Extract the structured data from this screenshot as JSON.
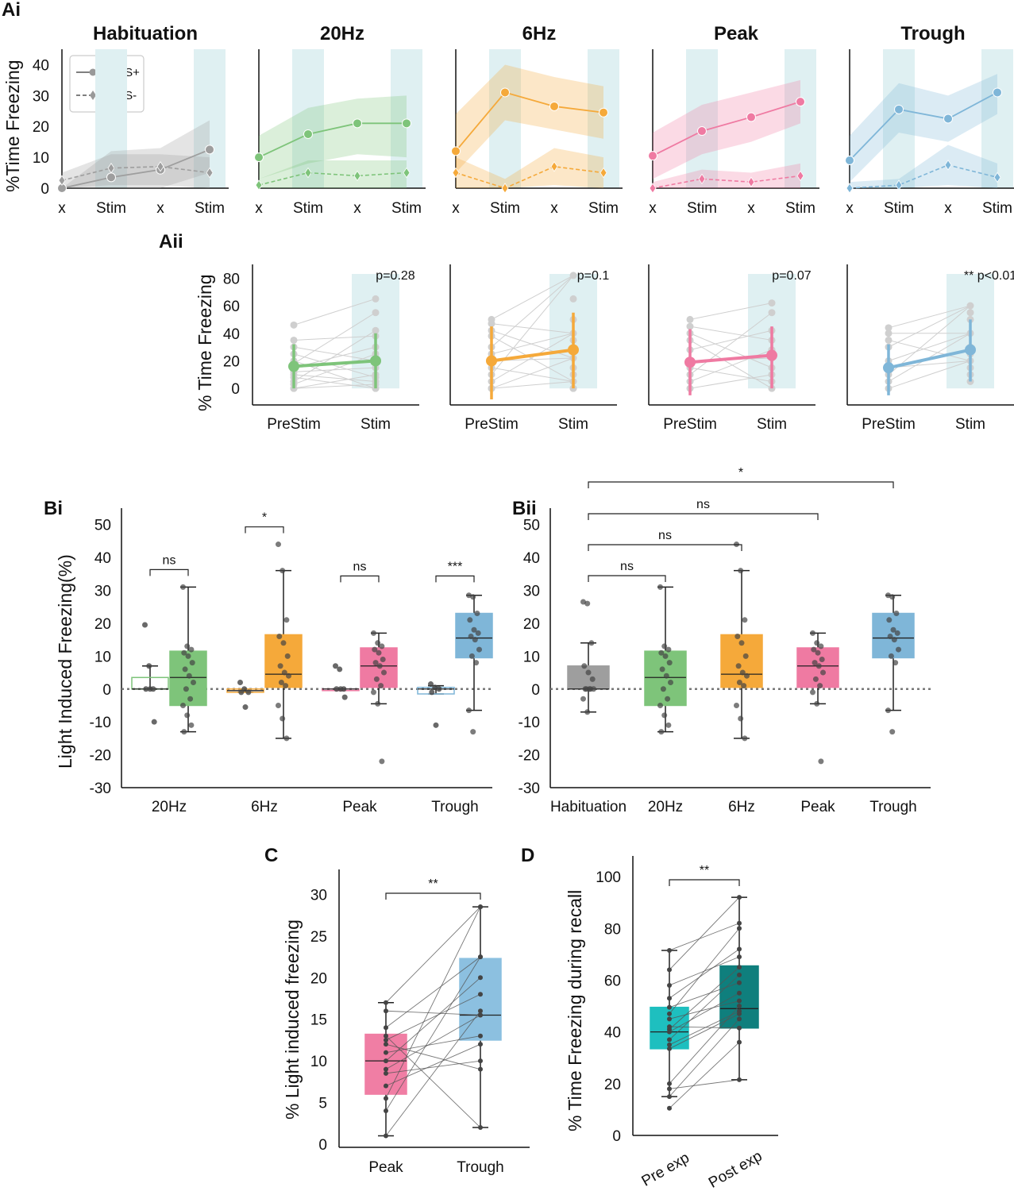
{
  "panel_labels": {
    "ai": "Ai",
    "aii": "Aii",
    "bi": "Bi",
    "bii": "Bii",
    "c": "C",
    "d": "D"
  },
  "colors": {
    "habituation": "#9e9e9e",
    "hz20": "#7ec47a",
    "hz6": "#f5a93a",
    "peak": "#ef7aa2",
    "trough": "#7fb6d8",
    "stim_band": "#dff0f2",
    "c_peak": "#f07ea4",
    "c_trough": "#8cc0e0",
    "d_pre": "#1ebfbf",
    "d_post": "#0f7f7d"
  },
  "chart_data": [
    {
      "id": "Ai",
      "type": "line",
      "ylabel": "%Time Freezing",
      "ylim": [
        0,
        45
      ],
      "yticks": [
        "0",
        "10",
        "20",
        "30",
        "40"
      ],
      "x_ticks": [
        "x",
        "Stim",
        "x",
        "Stim"
      ],
      "legend": [
        "FS+",
        "FS-"
      ],
      "panels": [
        {
          "title": "Habituation",
          "color": "#9e9e9e",
          "fs_plus": [
            0,
            3.5,
            6,
            12.5
          ],
          "fs_minus": [
            2.5,
            6.5,
            7,
            5
          ],
          "band_plus": [
            [
              0,
              0
            ],
            [
              0,
              12
            ],
            [
              0,
              13
            ],
            [
              5,
              22
            ]
          ],
          "band_minus": [
            [
              0,
              5
            ],
            [
              1,
              11
            ],
            [
              1,
              11
            ],
            [
              0,
              10
            ]
          ]
        },
        {
          "title": "20Hz",
          "color": "#7ec47a",
          "fs_plus": [
            10,
            17.5,
            21,
            21
          ],
          "fs_minus": [
            1,
            5,
            4,
            5
          ],
          "band_plus": [
            [
              3,
              17
            ],
            [
              8,
              26
            ],
            [
              11,
              29
            ],
            [
              10,
              30
            ]
          ],
          "band_minus": [
            [
              0,
              3
            ],
            [
              0,
              9
            ],
            [
              0,
              9
            ],
            [
              0,
              9
            ]
          ]
        },
        {
          "title": "6Hz",
          "color": "#f5a93a",
          "fs_plus": [
            12,
            31,
            26.5,
            24.5
          ],
          "fs_minus": [
            5,
            0,
            7,
            5
          ],
          "band_plus": [
            [
              5,
              24
            ],
            [
              22,
              40
            ],
            [
              19,
              36
            ],
            [
              16,
              33
            ]
          ],
          "band_minus": [
            [
              0,
              10
            ],
            [
              0,
              3
            ],
            [
              1,
              13
            ],
            [
              0,
              10
            ]
          ]
        },
        {
          "title": "Peak",
          "color": "#ef7aa2",
          "fs_plus": [
            10.5,
            18.5,
            23,
            28
          ],
          "fs_minus": [
            0,
            3,
            2,
            4
          ],
          "band_plus": [
            [
              3,
              18
            ],
            [
              11,
              27
            ],
            [
              15,
              31
            ],
            [
              21,
              35
            ]
          ],
          "band_minus": [
            [
              0,
              2
            ],
            [
              0,
              6
            ],
            [
              0,
              5
            ],
            [
              0,
              8
            ]
          ]
        },
        {
          "title": "Trough",
          "color": "#7fb6d8",
          "fs_plus": [
            9,
            25.5,
            22.5,
            31
          ],
          "fs_minus": [
            0,
            1,
            7.5,
            3.5
          ],
          "band_plus": [
            [
              2,
              17
            ],
            [
              18,
              34
            ],
            [
              15,
              30
            ],
            [
              24,
              37
            ]
          ],
          "band_minus": [
            [
              0,
              2
            ],
            [
              0,
              3
            ],
            [
              1,
              14
            ],
            [
              0,
              8
            ]
          ]
        }
      ]
    },
    {
      "id": "Aii",
      "type": "line",
      "ylabel": "% Time Freezing",
      "ylim": [
        -12,
        90
      ],
      "yticks": [
        "0",
        "20",
        "40",
        "60",
        "80"
      ],
      "x_ticks": [
        "PreStim",
        "Stim"
      ],
      "panels": [
        {
          "color": "#7ec47a",
          "pval": "p=0.28",
          "means": [
            16,
            20
          ],
          "err": [
            [
              0,
              32
            ],
            [
              0,
              40
            ]
          ],
          "pre": [
            46,
            35,
            30,
            25,
            20,
            18,
            15,
            12,
            10,
            8,
            5,
            3,
            0,
            0
          ],
          "post": [
            65,
            55,
            42,
            38,
            30,
            25,
            20,
            15,
            10,
            8,
            5,
            3,
            0,
            0
          ]
        },
        {
          "color": "#f5a93a",
          "pval": "p=0.1",
          "means": [
            20,
            28
          ],
          "err": [
            [
              -8,
              45
            ],
            [
              0,
              55
            ]
          ],
          "pre": [
            50,
            47,
            42,
            38,
            30,
            25,
            20,
            15,
            10,
            5,
            0,
            0
          ],
          "post": [
            82,
            65,
            50,
            40,
            35,
            28,
            22,
            15,
            10,
            5,
            0,
            0
          ]
        },
        {
          "color": "#ef7aa2",
          "pval": "p=0.07",
          "means": [
            19,
            24
          ],
          "err": [
            [
              -5,
              43
            ],
            [
              0,
              45
            ]
          ],
          "pre": [
            50,
            45,
            40,
            35,
            28,
            20,
            15,
            10,
            5,
            0
          ],
          "post": [
            62,
            55,
            42,
            35,
            28,
            22,
            15,
            10,
            5,
            0
          ]
        },
        {
          "color": "#7fb6d8",
          "pval": "** p<0.01",
          "means": [
            15,
            28
          ],
          "err": [
            [
              -5,
              32
            ],
            [
              5,
              50
            ]
          ],
          "pre": [
            44,
            40,
            35,
            30,
            20,
            15,
            10,
            5,
            0
          ],
          "post": [
            60,
            55,
            50,
            40,
            30,
            25,
            20,
            15,
            10,
            5
          ]
        }
      ]
    },
    {
      "id": "Bi",
      "type": "box",
      "ylabel": "Light Induced Freezing(%)",
      "ylim": [
        -30,
        55
      ],
      "yticks": [
        "-30",
        "-20",
        "-10",
        "0",
        "10",
        "20",
        "30",
        "40",
        "50"
      ],
      "categories": [
        "20Hz",
        "6Hz",
        "Peak",
        "Trough"
      ],
      "colors": [
        "#7ec47a",
        "#f5a93a",
        "#ef7aa2",
        "#7fb6d8"
      ],
      "sig": [
        "ns",
        "*",
        "ns",
        "***"
      ],
      "pre": [
        {
          "q1": 0,
          "med": 0,
          "q3": 3.5,
          "lo": 0,
          "hi": 7,
          "pts": [
            19.5,
            7,
            0,
            0,
            0,
            -10
          ]
        },
        {
          "q1": -1,
          "med": -0.5,
          "q3": 0,
          "lo": -1,
          "hi": 0,
          "pts": [
            2,
            0,
            -1,
            -1,
            -5.5
          ]
        },
        {
          "q1": 0,
          "med": 0,
          "q3": 0,
          "lo": 0,
          "hi": 0,
          "pts": [
            7,
            6,
            0,
            0,
            0,
            -2.5
          ]
        },
        {
          "q1": -1.5,
          "med": 0,
          "q3": 0.5,
          "lo": -1.5,
          "hi": 1,
          "pts": [
            1.5,
            0.5,
            0,
            -1,
            -11
          ]
        }
      ],
      "stim": [
        {
          "q1": -5,
          "med": 3.5,
          "q3": 11.5,
          "lo": -13,
          "hi": 31,
          "pts": [
            31,
            13,
            12,
            11,
            10,
            8,
            6,
            4,
            2,
            0,
            -3,
            -5,
            -8,
            -11,
            -13
          ]
        },
        {
          "q1": 0.5,
          "med": 4.5,
          "q3": 16.5,
          "lo": -15,
          "hi": 36,
          "pts": [
            44,
            36,
            21,
            16,
            14,
            10,
            7,
            5,
            4,
            2,
            1,
            -5,
            -9,
            -15
          ]
        },
        {
          "q1": 0.5,
          "med": 7,
          "q3": 12.5,
          "lo": -4.5,
          "hi": 17,
          "pts": [
            17,
            14,
            13,
            12,
            11,
            9,
            8,
            7,
            5,
            3,
            1,
            -1,
            -4.5,
            -22
          ]
        },
        {
          "q1": 9.5,
          "med": 15.5,
          "q3": 23,
          "lo": -6.5,
          "hi": 28.5,
          "pts": [
            28.5,
            28,
            23,
            21,
            18,
            17,
            16,
            15,
            12,
            10,
            8,
            -6.5,
            -13
          ]
        }
      ]
    },
    {
      "id": "Bii",
      "type": "box",
      "ylim": [
        -30,
        55
      ],
      "yticks": [
        "-30",
        "-20",
        "-10",
        "0",
        "10",
        "20",
        "30",
        "40",
        "50"
      ],
      "categories": [
        "Habituation",
        "20Hz",
        "6Hz",
        "Peak",
        "Trough"
      ],
      "colors": [
        "#9e9e9e",
        "#7ec47a",
        "#f5a93a",
        "#ef7aa2",
        "#7fb6d8"
      ],
      "comparisons": [
        {
          "to": "20Hz",
          "label": "ns"
        },
        {
          "to": "6Hz",
          "label": "ns"
        },
        {
          "to": "Peak",
          "label": "ns"
        },
        {
          "to": "Trough",
          "label": "*"
        }
      ],
      "boxes": [
        {
          "q1": 0,
          "med": 0,
          "q3": 7,
          "lo": -7,
          "hi": 14,
          "pts": [
            26.5,
            26,
            14,
            7,
            5,
            3,
            0,
            0,
            0,
            0,
            0,
            -3,
            -7
          ]
        },
        {
          "q1": -5,
          "med": 3.5,
          "q3": 11.5,
          "lo": -13,
          "hi": 31,
          "pts": [
            31,
            13,
            12,
            11,
            10,
            8,
            6,
            4,
            2,
            0,
            -3,
            -5,
            -8,
            -11,
            -13
          ]
        },
        {
          "q1": 0.5,
          "med": 4.5,
          "q3": 16.5,
          "lo": -15,
          "hi": 36,
          "pts": [
            44,
            36,
            21,
            16,
            14,
            10,
            7,
            5,
            4,
            2,
            1,
            -5,
            -9,
            -15
          ]
        },
        {
          "q1": 0.5,
          "med": 7,
          "q3": 12.5,
          "lo": -4.5,
          "hi": 17,
          "pts": [
            17,
            14,
            13,
            12,
            11,
            9,
            8,
            7,
            5,
            3,
            1,
            -1,
            -4.5,
            -22
          ]
        },
        {
          "q1": 9.5,
          "med": 15.5,
          "q3": 23,
          "lo": -6.5,
          "hi": 28.5,
          "pts": [
            28.5,
            28,
            23,
            21,
            18,
            17,
            16,
            15,
            12,
            10,
            8,
            -6.5,
            -13
          ]
        }
      ]
    },
    {
      "id": "C",
      "type": "box",
      "ylabel": "% Light induced freezing",
      "ylim": [
        0,
        33
      ],
      "yticks": [
        "0",
        "5",
        "10",
        "15",
        "20",
        "25",
        "30"
      ],
      "categories": [
        "Peak",
        "Trough"
      ],
      "sig": "**",
      "boxes": [
        {
          "q1": 6,
          "med": 10,
          "q3": 13.2,
          "lo": 1,
          "hi": 17
        },
        {
          "q1": 12.5,
          "med": 15.5,
          "q3": 22.3,
          "lo": 2,
          "hi": 28.5
        }
      ],
      "pairs": [
        [
          1,
          16
        ],
        [
          4,
          22.5
        ],
        [
          5.5,
          28.5
        ],
        [
          7,
          12
        ],
        [
          8.5,
          10
        ],
        [
          9,
          15.5
        ],
        [
          10,
          20
        ],
        [
          11,
          13
        ],
        [
          12,
          9
        ],
        [
          12.5,
          18
        ],
        [
          13,
          2
        ],
        [
          14,
          22.5
        ],
        [
          16,
          15.5
        ],
        [
          17,
          28.5
        ]
      ]
    },
    {
      "id": "D",
      "type": "box",
      "ylabel": "% Time Freezing during recall",
      "ylim": [
        0,
        108
      ],
      "yticks": [
        "0",
        "20",
        "40",
        "60",
        "80",
        "100"
      ],
      "categories": [
        "Pre exp",
        "Post exp"
      ],
      "sig": "**",
      "boxes": [
        {
          "q1": 33.5,
          "med": 40,
          "q3": 49.5,
          "lo": 15,
          "hi": 71.5
        },
        {
          "q1": 41.5,
          "med": 49,
          "q3": 65.5,
          "lo": 21.5,
          "hi": 92
        }
      ],
      "pairs": [
        [
          10.5,
          36
        ],
        [
          15,
          45
        ],
        [
          18,
          21.5
        ],
        [
          20,
          50
        ],
        [
          33.5,
          47
        ],
        [
          35,
          48
        ],
        [
          37,
          62
        ],
        [
          40,
          55
        ],
        [
          41,
          65
        ],
        [
          42,
          41.5
        ],
        [
          45,
          52
        ],
        [
          47,
          80
        ],
        [
          49.5,
          59
        ],
        [
          53,
          72
        ],
        [
          58,
          69
        ],
        [
          64,
          92
        ],
        [
          71.5,
          82
        ]
      ]
    }
  ]
}
